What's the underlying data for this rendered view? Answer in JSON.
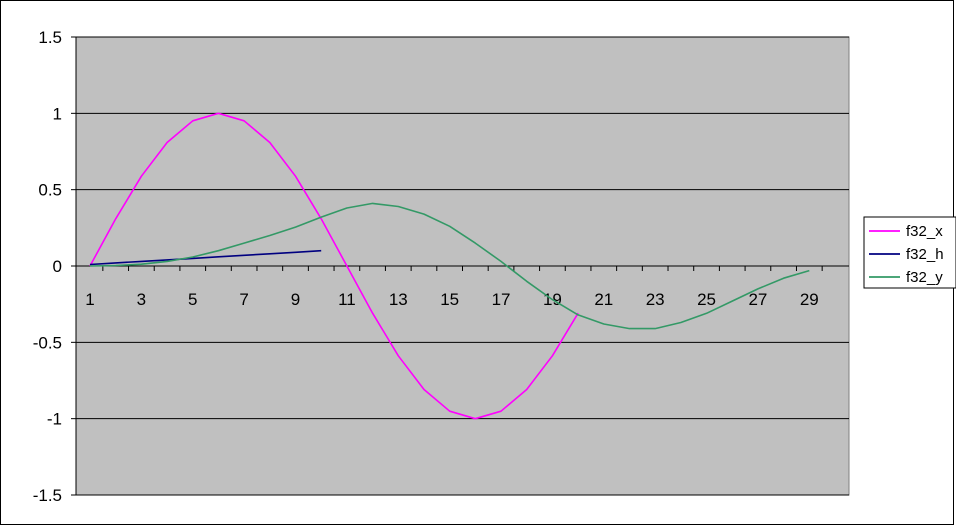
{
  "chart_data": {
    "type": "line",
    "title": "",
    "xlabel": "",
    "ylabel": "",
    "x_categories": [
      1,
      2,
      3,
      4,
      5,
      6,
      7,
      8,
      9,
      10,
      11,
      12,
      13,
      14,
      15,
      16,
      17,
      18,
      19,
      20,
      21,
      22,
      23,
      24,
      25,
      26,
      27,
      28,
      29,
      30
    ],
    "x_tick_labels": [
      "1",
      "3",
      "5",
      "7",
      "9",
      "11",
      "13",
      "15",
      "17",
      "19",
      "21",
      "23",
      "25",
      "27",
      "29"
    ],
    "ylim": [
      -1.5,
      1.5
    ],
    "y_tick_labels": [
      "1.5",
      "1",
      "0.5",
      "0",
      "-0.5",
      "-1",
      "-1.5"
    ],
    "y_ticks": [
      1.5,
      1,
      0.5,
      0,
      -0.5,
      -1,
      -1.5
    ],
    "grid": "horizontal",
    "legend_position": "right",
    "plot_background": "#c0c0c0",
    "series": [
      {
        "name": "f32_x",
        "color": "#ff00ff",
        "x": [
          1,
          2,
          3,
          4,
          5,
          6,
          7,
          8,
          9,
          10,
          11,
          12,
          13,
          14,
          15,
          16,
          17,
          18,
          19,
          20
        ],
        "values": [
          0,
          0.309,
          0.588,
          0.809,
          0.951,
          1.0,
          0.951,
          0.809,
          0.588,
          0.309,
          0,
          -0.309,
          -0.588,
          -0.809,
          -0.951,
          -1.0,
          -0.951,
          -0.809,
          -0.588,
          -0.309
        ]
      },
      {
        "name": "f32_h",
        "color": "#000080",
        "x": [
          1,
          2,
          3,
          4,
          5,
          6,
          7,
          8,
          9,
          10
        ],
        "values": [
          0.01,
          0.02,
          0.03,
          0.04,
          0.05,
          0.06,
          0.07,
          0.08,
          0.09,
          0.1
        ]
      },
      {
        "name": "f32_y",
        "color": "#339966",
        "x": [
          1,
          2,
          3,
          4,
          5,
          6,
          7,
          8,
          9,
          10,
          11,
          12,
          13,
          14,
          15,
          16,
          17,
          18,
          19,
          20,
          21,
          22,
          23,
          24,
          25,
          26,
          27,
          28,
          29
        ],
        "values": [
          0,
          0.003,
          0.012,
          0.03,
          0.059,
          0.1,
          0.15,
          0.2,
          0.255,
          0.32,
          0.38,
          0.41,
          0.39,
          0.34,
          0.26,
          0.15,
          0.03,
          -0.1,
          -0.22,
          -0.32,
          -0.38,
          -0.41,
          -0.41,
          -0.37,
          -0.31,
          -0.23,
          -0.15,
          -0.08,
          -0.03
        ]
      }
    ]
  }
}
